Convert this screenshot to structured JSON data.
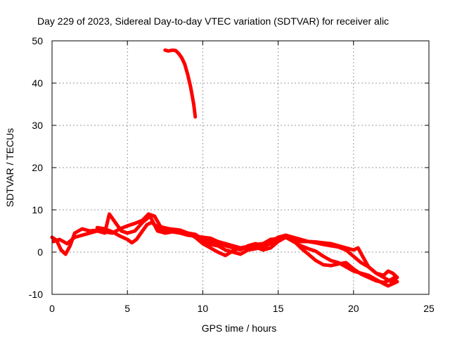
{
  "chart_data": {
    "type": "line",
    "title": "Day 229 of 2023, Sidereal Day-to-day VTEC variation (SDTVAR) for receiver alic",
    "xlabel": "GPS time / hours",
    "ylabel": "SDTVAR / TECUs",
    "xlim": [
      0,
      25
    ],
    "ylim": [
      -10,
      50
    ],
    "xticks": [
      0,
      5,
      10,
      15,
      20,
      25
    ],
    "yticks": [
      -10,
      0,
      10,
      20,
      30,
      40,
      50
    ],
    "xtick_labels": [
      "0",
      "5",
      "10",
      "15",
      "20",
      "25"
    ],
    "ytick_labels": [
      "-10",
      "0",
      "10",
      "20",
      "30",
      "40",
      "50"
    ],
    "grid": true,
    "series_color": "#ff0000",
    "series": [
      {
        "name": "arc-a",
        "points": [
          [
            0,
            3.5
          ],
          [
            0.3,
            2.8
          ],
          [
            0.6,
            0.5
          ],
          [
            0.9,
            -0.5
          ],
          [
            1.2,
            1.5
          ],
          [
            1.5,
            4.5
          ],
          [
            2,
            5.5
          ],
          [
            2.5,
            5
          ],
          [
            3,
            5.2
          ],
          [
            3.5,
            4.8
          ],
          [
            4,
            4.5
          ],
          [
            4.5,
            5.5
          ],
          [
            5,
            6.2
          ],
          [
            5.5,
            6.8
          ],
          [
            6,
            7.5
          ],
          [
            6.4,
            9
          ],
          [
            6.8,
            8.5
          ],
          [
            7.2,
            6
          ],
          [
            7.8,
            5.5
          ],
          [
            8.5,
            5.2
          ],
          [
            9,
            4.5
          ],
          [
            9.5,
            3.5
          ],
          [
            10,
            2
          ],
          [
            10.5,
            1
          ],
          [
            11,
            0
          ],
          [
            11.5,
            -0.8
          ],
          [
            12,
            0.3
          ],
          [
            12.5,
            1
          ],
          [
            13,
            0.8
          ],
          [
            13.5,
            1.2
          ],
          [
            14,
            0.5
          ],
          [
            14.5,
            1
          ],
          [
            15,
            2.5
          ],
          [
            15.5,
            3.5
          ],
          [
            16,
            2.5
          ],
          [
            16.5,
            1.5
          ],
          [
            17,
            0.8
          ],
          [
            17.5,
            0.2
          ],
          [
            18,
            -1
          ],
          [
            18.5,
            -2
          ],
          [
            19,
            -2.5
          ],
          [
            19.5,
            -3.5
          ],
          [
            20,
            -4.5
          ],
          [
            20.5,
            -5
          ],
          [
            21,
            -5.5
          ],
          [
            21.5,
            -6.5
          ],
          [
            22,
            -7.5
          ],
          [
            22.3,
            -8
          ],
          [
            22.6,
            -7.5
          ],
          [
            22.9,
            -7
          ]
        ]
      },
      {
        "name": "arc-b",
        "points": [
          [
            0.1,
            2.5
          ],
          [
            0.5,
            3
          ],
          [
            1,
            2
          ],
          [
            1.5,
            3.5
          ],
          [
            2,
            4
          ],
          [
            2.5,
            4.5
          ],
          [
            3,
            5
          ],
          [
            3.5,
            4.5
          ],
          [
            3.8,
            9
          ],
          [
            4.2,
            7
          ],
          [
            4.6,
            5
          ],
          [
            5,
            4.5
          ],
          [
            5.5,
            5
          ],
          [
            6,
            7
          ],
          [
            6.5,
            8.5
          ],
          [
            7,
            5
          ],
          [
            7.5,
            4.5
          ],
          [
            8,
            4.8
          ],
          [
            9,
            4.5
          ],
          [
            9.5,
            4.2
          ],
          [
            10,
            3
          ],
          [
            10.5,
            2.5
          ],
          [
            11,
            2
          ],
          [
            11.5,
            1.5
          ],
          [
            12,
            1
          ],
          [
            12.5,
            0.5
          ],
          [
            13,
            1.5
          ],
          [
            13.5,
            2
          ],
          [
            14,
            1.5
          ],
          [
            14.5,
            2.5
          ],
          [
            15,
            3.5
          ],
          [
            15.5,
            4
          ],
          [
            16,
            3.5
          ],
          [
            16.5,
            3
          ],
          [
            17,
            2.5
          ],
          [
            17.5,
            2.2
          ],
          [
            18,
            1.8
          ],
          [
            18.5,
            1.5
          ],
          [
            19,
            1.2
          ],
          [
            19.5,
            0.5
          ],
          [
            20,
            -1
          ],
          [
            20.5,
            -2.5
          ],
          [
            21,
            -3.5
          ],
          [
            21.5,
            -5
          ],
          [
            22,
            -6
          ],
          [
            22.5,
            -7
          ],
          [
            22.8,
            -6.5
          ]
        ]
      },
      {
        "name": "arc-c",
        "points": [
          [
            3,
            5.8
          ],
          [
            3.5,
            5.5
          ],
          [
            4,
            4.8
          ],
          [
            4.5,
            3.8
          ],
          [
            5,
            3
          ],
          [
            5.3,
            2.2
          ],
          [
            5.6,
            3
          ],
          [
            6,
            5
          ],
          [
            6.3,
            6.5
          ],
          [
            6.6,
            7
          ],
          [
            7,
            6
          ],
          [
            7.5,
            5
          ],
          [
            8,
            4.8
          ],
          [
            8.5,
            4.5
          ],
          [
            9,
            4
          ],
          [
            9.5,
            3.8
          ],
          [
            10,
            3.5
          ],
          [
            10.5,
            3.3
          ],
          [
            11,
            2.5
          ],
          [
            11.5,
            2
          ],
          [
            12,
            1.5
          ],
          [
            12.5,
            1
          ],
          [
            13,
            1.3
          ],
          [
            13.5,
            1.8
          ],
          [
            14,
            2
          ],
          [
            14.5,
            3
          ],
          [
            15,
            3.2
          ],
          [
            15.5,
            3.5
          ],
          [
            16,
            3
          ],
          [
            16.5,
            2.5
          ],
          [
            17,
            2.5
          ],
          [
            17.5,
            2.4
          ],
          [
            18,
            2.2
          ],
          [
            18.5,
            2
          ],
          [
            19,
            1.5
          ],
          [
            19.5,
            1
          ],
          [
            20,
            0.5
          ],
          [
            20.3,
            1
          ],
          [
            20.6,
            -1
          ],
          [
            21,
            -3.5
          ],
          [
            21.5,
            -5
          ],
          [
            22,
            -5.5
          ],
          [
            22.3,
            -4.5
          ],
          [
            22.6,
            -5
          ],
          [
            22.9,
            -6
          ]
        ]
      },
      {
        "name": "arc-d",
        "points": [
          [
            9,
            4.5
          ],
          [
            9.5,
            3.5
          ],
          [
            10,
            2.5
          ],
          [
            10.5,
            1.8
          ],
          [
            11,
            1.5
          ],
          [
            11.5,
            0.5
          ],
          [
            12,
            0
          ],
          [
            12.5,
            -0.5
          ],
          [
            13,
            0.5
          ],
          [
            13.5,
            0.8
          ],
          [
            14,
            1.2
          ],
          [
            14.5,
            2
          ],
          [
            15,
            3
          ],
          [
            15.5,
            3.8
          ],
          [
            16,
            2.8
          ],
          [
            16.5,
            1
          ],
          [
            17,
            -0.5
          ],
          [
            17.5,
            -2
          ],
          [
            18,
            -3
          ],
          [
            18.5,
            -3.2
          ],
          [
            19,
            -2.8
          ],
          [
            19.5,
            -2.5
          ],
          [
            20,
            -4
          ],
          [
            20.5,
            -5.2
          ],
          [
            21,
            -6
          ],
          [
            21.5,
            -6.8
          ],
          [
            22,
            -7.2
          ],
          [
            22.5,
            -6.5
          ],
          [
            22.8,
            -5.8
          ]
        ]
      },
      {
        "name": "arc-e",
        "points": [
          [
            7.5,
            47.8
          ],
          [
            7.7,
            47.6
          ],
          [
            8,
            47.8
          ],
          [
            8.2,
            47.7
          ],
          [
            8.4,
            47
          ],
          [
            8.6,
            46
          ],
          [
            8.8,
            44.5
          ],
          [
            9,
            42
          ],
          [
            9.2,
            39
          ],
          [
            9.4,
            35
          ],
          [
            9.5,
            32
          ]
        ]
      }
    ]
  }
}
